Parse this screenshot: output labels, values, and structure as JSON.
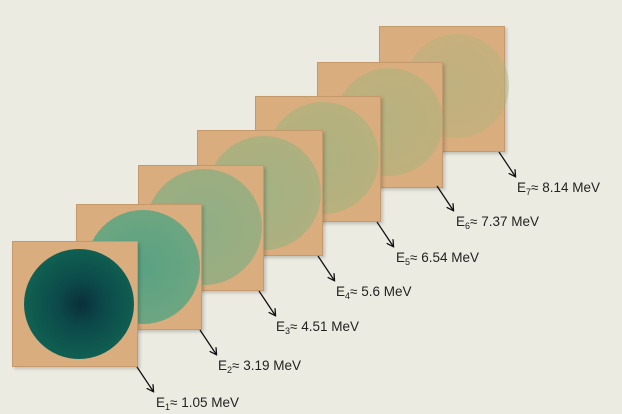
{
  "diagram": {
    "layers": [
      {
        "id": "E1",
        "label": "≈ 1.05 MeV",
        "sub": "1",
        "prefix": "E"
      },
      {
        "id": "E2",
        "label": "≈ 3.19 MeV",
        "sub": "2",
        "prefix": "E"
      },
      {
        "id": "E3",
        "label": "≈ 4.51 MeV",
        "sub": "3",
        "prefix": "E"
      },
      {
        "id": "E4",
        "label": "≈ 5.6 MeV",
        "sub": "4",
        "prefix": "E"
      },
      {
        "id": "E5",
        "label": "≈ 6.54 MeV",
        "sub": "5",
        "prefix": "E"
      },
      {
        "id": "E6",
        "label": "≈ 7.37 MeV",
        "sub": "6",
        "prefix": "E"
      },
      {
        "id": "E7",
        "label": "≈ 8.14 MeV",
        "sub": "7",
        "prefix": "E"
      }
    ]
  },
  "colors": {
    "background": "#ecebe2",
    "plate": "#d9ad7d",
    "spot_strong": "#0f5a4f",
    "spot_faint": "#9fb58f"
  }
}
